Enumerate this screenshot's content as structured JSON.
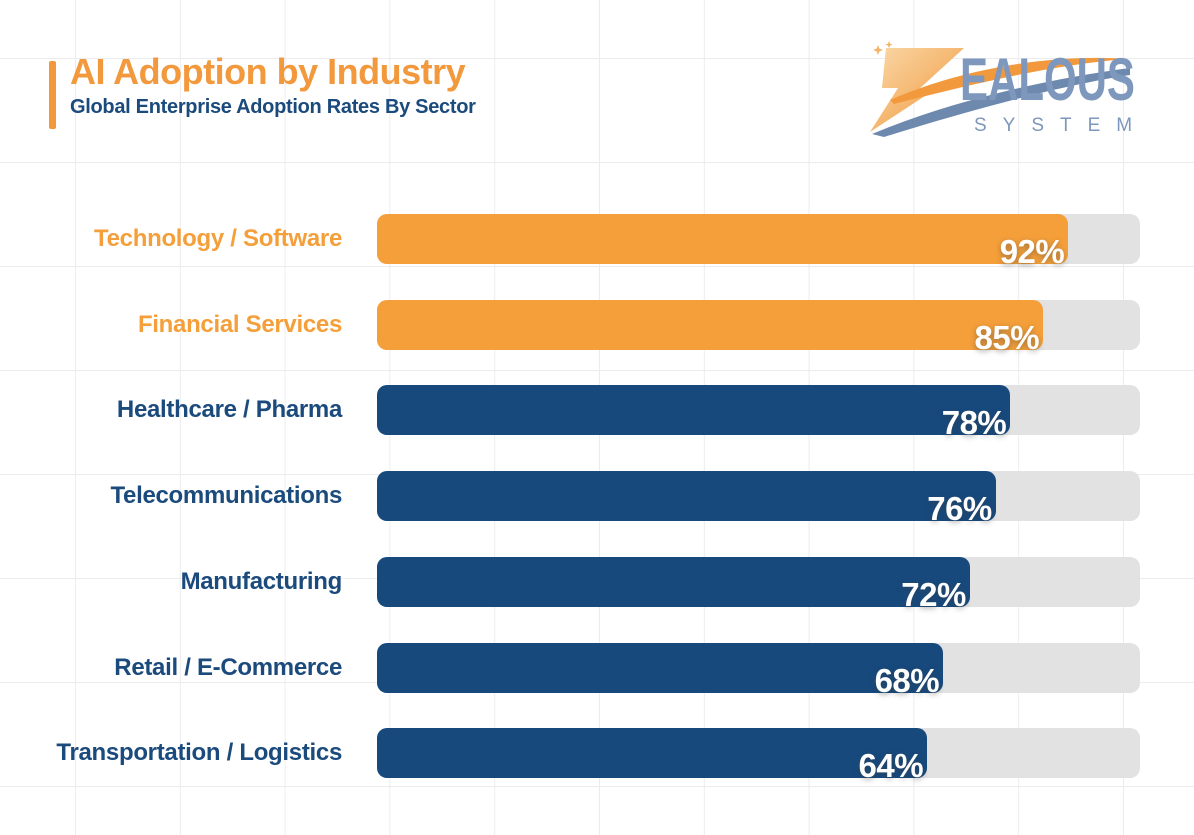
{
  "page": {
    "background": "#ffffff",
    "grid_color": "#ececef"
  },
  "header": {
    "title": "AI Adoption by Industry",
    "subtitle": "Global Enterprise Adoption Rates By Sector",
    "title_color": "#F2993D",
    "subtitle_color": "#1B4A7C",
    "accent_color": "#F2993D"
  },
  "logo": {
    "brand_z": "Z",
    "brand_rest": "EALOUS",
    "tagline": "SYSTEM",
    "slate_color": "#7E97BC",
    "orange_color": "#F2993D"
  },
  "chart_data": {
    "type": "bar",
    "orientation": "horizontal",
    "title": "AI Adoption by Industry",
    "subtitle": "Global Enterprise Adoption Rates By Sector",
    "categories": [
      "Technology / Software",
      "Financial Services",
      "Healthcare / Pharma",
      "Telecommunications",
      "Manufacturing",
      "Retail / E-Commerce",
      "Transportation / Logistics"
    ],
    "values": [
      92,
      85,
      78,
      76,
      72,
      68,
      64
    ],
    "value_labels": [
      "92%",
      "85%",
      "78%",
      "76%",
      "72%",
      "68%",
      "64%"
    ],
    "bar_colors": [
      "#F49F3A",
      "#F49F3A",
      "#17497D",
      "#17497D",
      "#17497D",
      "#17497D",
      "#17497D"
    ],
    "label_colors": [
      "#F49F3A",
      "#F49F3A",
      "#1B4A7C",
      "#1B4A7C",
      "#1B4A7C",
      "#1B4A7C",
      "#1B4A7C"
    ],
    "track_color": "#E2E2E2",
    "xlim": [
      0,
      100
    ],
    "grid": true,
    "legend": false,
    "value_label_position": "inside-end",
    "fill_pct": [
      90.6,
      87.3,
      83.0,
      81.1,
      77.7,
      74.2,
      72.1
    ]
  },
  "layout": {
    "first_row_top": 214,
    "row_pitch": 85.7
  }
}
